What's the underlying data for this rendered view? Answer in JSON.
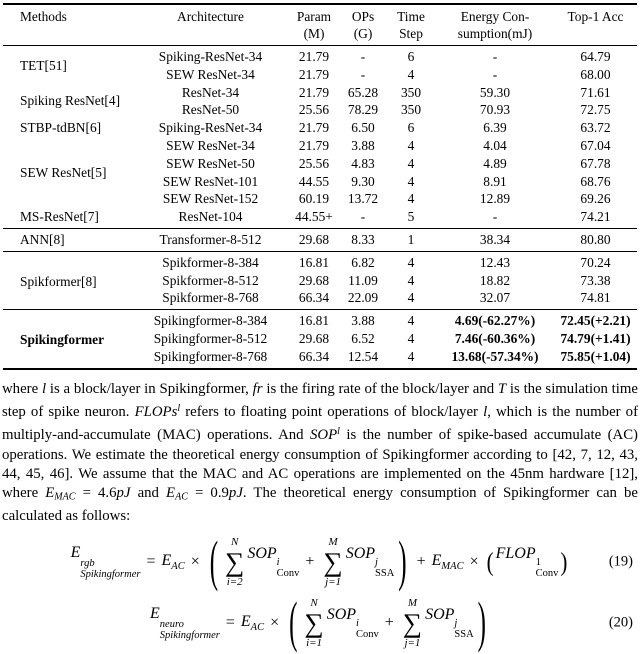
{
  "sym": {
    "sigma": "∑",
    "plus": "+",
    "times": "×",
    "equals": "=",
    "lparen": "(",
    "rparen": ")"
  },
  "table": {
    "headers": [
      {
        "line1": "Methods",
        "line2": ""
      },
      {
        "line1": "Architecture",
        "line2": ""
      },
      {
        "line1": "Param",
        "line2": "(M)"
      },
      {
        "line1": "OPs",
        "line2": "(G)"
      },
      {
        "line1": "Time",
        "line2": "Step"
      },
      {
        "line1": "Energy Con-",
        "line2": "sumption(mJ)"
      },
      {
        "line1": "Top-1 Acc",
        "line2": ""
      }
    ],
    "sections": [
      {
        "highlight": false,
        "groups": [
          {
            "method": "TET[51]",
            "rows": [
              [
                "Spiking-ResNet-34",
                "21.79",
                "-",
                "6",
                "-",
                "64.79"
              ],
              [
                "SEW ResNet-34",
                "21.79",
                "-",
                "4",
                "-",
                "68.00"
              ]
            ]
          },
          {
            "method": "Spiking ResNet[4]",
            "rows": [
              [
                "ResNet-34",
                "21.79",
                "65.28",
                "350",
                "59.30",
                "71.61"
              ],
              [
                "ResNet-50",
                "25.56",
                "78.29",
                "350",
                "70.93",
                "72.75"
              ]
            ]
          },
          {
            "method": "STBP-tdBN[6]",
            "rows": [
              [
                "Spiking-ResNet-34",
                "21.79",
                "6.50",
                "6",
                "6.39",
                "63.72"
              ]
            ]
          },
          {
            "method": "SEW ResNet[5]",
            "rows": [
              [
                "SEW ResNet-34",
                "21.79",
                "3.88",
                "4",
                "4.04",
                "67.04"
              ],
              [
                "SEW ResNet-50",
                "25.56",
                "4.83",
                "4",
                "4.89",
                "67.78"
              ],
              [
                "SEW ResNet-101",
                "44.55",
                "9.30",
                "4",
                "8.91",
                "68.76"
              ],
              [
                "SEW ResNet-152",
                "60.19",
                "13.72",
                "4",
                "12.89",
                "69.26"
              ]
            ]
          },
          {
            "method": "MS-ResNet[7]",
            "rows": [
              [
                "ResNet-104",
                "44.55+",
                "-",
                "5",
                "-",
                "74.21"
              ]
            ]
          }
        ]
      },
      {
        "highlight": false,
        "groups": [
          {
            "method": "ANN[8]",
            "rows": [
              [
                "Transformer-8-512",
                "29.68",
                "8.33",
                "1",
                "38.34",
                "80.80"
              ]
            ]
          }
        ]
      },
      {
        "highlight": false,
        "groups": [
          {
            "method": "Spikformer[8]",
            "rows": [
              [
                "Spikformer-8-384",
                "16.81",
                "6.82",
                "4",
                "12.43",
                "70.24"
              ],
              [
                "Spikformer-8-512",
                "29.68",
                "11.09",
                "4",
                "18.82",
                "73.38"
              ],
              [
                "Spikformer-8-768",
                "66.34",
                "22.09",
                "4",
                "32.07",
                "74.81"
              ]
            ]
          }
        ]
      },
      {
        "highlight": true,
        "groups": [
          {
            "method": "Spikingformer",
            "rows": [
              [
                "Spikingformer-8-384",
                "16.81",
                "3.88",
                "4",
                "4.69(-62.27%)",
                "72.45(+2.21)"
              ],
              [
                "Spikingformer-8-512",
                "29.68",
                "6.52",
                "4",
                "7.46(-60.36%)",
                "74.79(+1.41)"
              ],
              [
                "Spikingformer-8-768",
                "66.34",
                "12.54",
                "4",
                "13.68(-57.34%)",
                "75.85(+1.04)"
              ]
            ]
          }
        ]
      }
    ]
  },
  "paragraph": {
    "segments": [
      {
        "s": "r",
        "t": "where "
      },
      {
        "s": "i",
        "t": "l"
      },
      {
        "s": "r",
        "t": " is a block/layer in Spikingformer, "
      },
      {
        "s": "i",
        "t": "fr"
      },
      {
        "s": "r",
        "t": " is the firing rate of the block/layer and "
      },
      {
        "s": "i",
        "t": "T"
      },
      {
        "s": "r",
        "t": " is the simulation time step of spike neuron. "
      },
      {
        "s": "i",
        "t": "FLOPs"
      },
      {
        "s": "isup",
        "t": "l"
      },
      {
        "s": "r",
        "t": " refers to floating point operations of block/layer "
      },
      {
        "s": "i",
        "t": "l"
      },
      {
        "s": "r",
        "t": ", which is the number of multiply-and-accumulate (MAC) operations. And "
      },
      {
        "s": "i",
        "t": "SOP"
      },
      {
        "s": "isup",
        "t": "l"
      },
      {
        "s": "r",
        "t": " is the number of spike-based accumulate (AC) operations. We estimate the theoretical energy consumption of Spikingformer according to [42, 7, 12, 43, 44, 45, 46]. We assume that the MAC and AC operations are implemented on the 45nm hardware [12], where "
      },
      {
        "s": "i",
        "t": "E"
      },
      {
        "s": "isub",
        "t": "MAC"
      },
      {
        "s": "r",
        "t": " = 4.6"
      },
      {
        "s": "i",
        "t": "pJ"
      },
      {
        "s": "r",
        "t": " and "
      },
      {
        "s": "i",
        "t": "E"
      },
      {
        "s": "isub",
        "t": "AC"
      },
      {
        "s": "r",
        "t": " = 0.9"
      },
      {
        "s": "i",
        "t": "pJ"
      },
      {
        "s": "r",
        "t": ". The theoretical energy consumption of Spikingformer can be calculated as follows:"
      }
    ]
  },
  "eq19": {
    "lhs_base": "E",
    "lhs_sup": "rgb",
    "lhs_sub": "Spikingformer",
    "e1_base": "E",
    "e1_sub": "AC",
    "sum1_top": "N",
    "sum1_bot": "i=2",
    "sop1_base": "SOP",
    "sop1_sup": "i",
    "sop1_sub": "Conv",
    "sum2_top": "M",
    "sum2_bot": "j=1",
    "sop2_base": "SOP",
    "sop2_sup": "j",
    "sop2_sub": "SSA",
    "e2_base": "E",
    "e2_sub": "MAC",
    "flop_base": "FLOP",
    "flop_sup": "1",
    "flop_sub": "Conv",
    "number": "(19)"
  },
  "eq20": {
    "lhs_base": "E",
    "lhs_sup": "neuro",
    "lhs_sub": "Spikingformer",
    "e1_base": "E",
    "e1_sub": "AC",
    "sum1_top": "N",
    "sum1_bot": "i=1",
    "sop1_base": "SOP",
    "sop1_sup": "i",
    "sop1_sub": "Conv",
    "sum2_top": "M",
    "sum2_bot": "j=1",
    "sop2_base": "SOP",
    "sop2_sup": "j",
    "sop2_sub": "SSA",
    "number": "(20)"
  }
}
